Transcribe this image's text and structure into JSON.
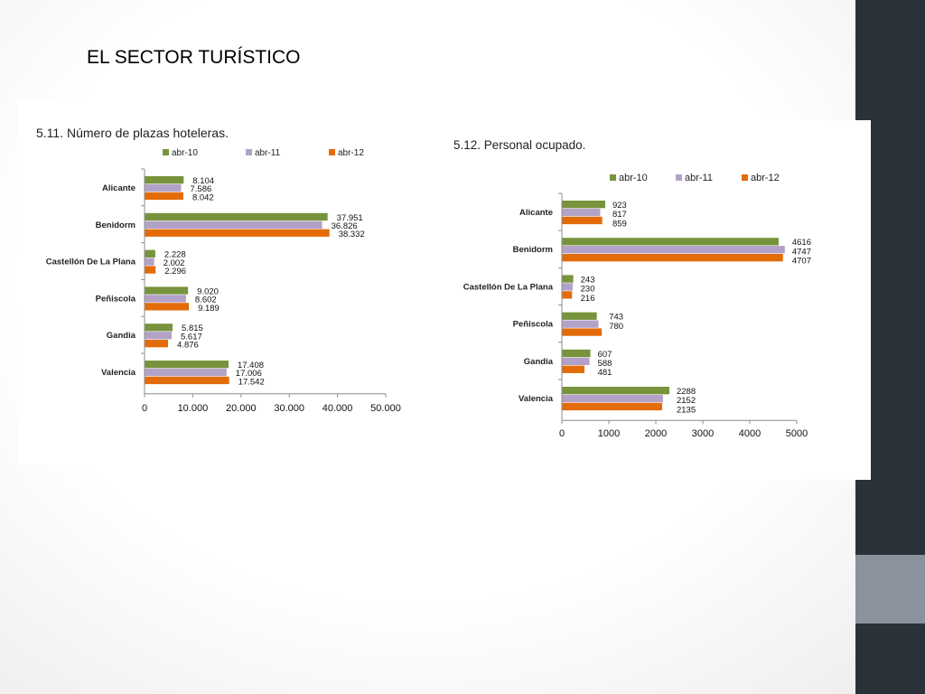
{
  "slide": {
    "title": "EL SECTOR TURÍSTICO"
  },
  "colors": {
    "abr-10": "#77933c",
    "abr-11": "#b3a2c7",
    "abr-12": "#e36c09",
    "sidebar": "#2b3138",
    "sidebar_accent": "#8a929d"
  },
  "chart_data": [
    {
      "type": "bar",
      "orientation": "horizontal",
      "title": "5.11. Número de plazas hoteleras.",
      "categories": [
        "Alicante",
        "Benidorm",
        "Castellón De La Plana",
        "Peñiscola",
        "Gandia",
        "Valencia"
      ],
      "series": [
        {
          "name": "abr-10",
          "color": "#77933c",
          "values": [
            8104,
            37951,
            2228,
            9020,
            5815,
            17408
          ],
          "labels": [
            "8.104",
            "37.951",
            "2.228",
            "9.020",
            "5.815",
            "17.408"
          ]
        },
        {
          "name": "abr-11",
          "color": "#b3a2c7",
          "values": [
            7586,
            36826,
            2002,
            8602,
            5617,
            17006
          ],
          "labels": [
            "7.586",
            "36.826",
            "2.002",
            "8.602",
            "5.617",
            "17.006"
          ]
        },
        {
          "name": "abr-12",
          "color": "#e36c09",
          "values": [
            8042,
            38332,
            2296,
            9189,
            4876,
            17542
          ],
          "labels": [
            "8.042",
            "38.332",
            "2.296",
            "9.189",
            "4.876",
            "17.542"
          ]
        }
      ],
      "xlim": [
        0,
        50000
      ],
      "xticks": [
        0,
        10000,
        20000,
        30000,
        40000,
        50000
      ],
      "xtick_labels": [
        "0",
        "10.000",
        "20.000",
        "30.000",
        "40.000",
        "50.000"
      ],
      "legend": "top"
    },
    {
      "type": "bar",
      "orientation": "horizontal",
      "title": "5.12. Personal ocupado.",
      "categories": [
        "Alicante",
        "Benidorm",
        "Castellón De La Plana",
        "Peñiscola",
        "Gandia",
        "Valencia"
      ],
      "series": [
        {
          "name": "abr-10",
          "color": "#77933c",
          "values": [
            923,
            4616,
            243,
            743,
            607,
            2288
          ],
          "labels": [
            "923",
            "4616",
            "243",
            "743",
            "607",
            "2288"
          ]
        },
        {
          "name": "abr-11",
          "color": "#b3a2c7",
          "values": [
            817,
            4747,
            230,
            780,
            588,
            2152
          ],
          "labels": [
            "817",
            "4747",
            "230",
            "780",
            "588",
            "2152"
          ]
        },
        {
          "name": "abr-12",
          "color": "#e36c09",
          "values": [
            859,
            4707,
            216,
            850,
            481,
            2135
          ],
          "labels": [
            "859",
            "4707",
            "216",
            "",
            "481",
            "2135"
          ]
        }
      ],
      "xlim": [
        0,
        5000
      ],
      "xticks": [
        0,
        1000,
        2000,
        3000,
        4000,
        5000
      ],
      "xtick_labels": [
        "0",
        "1000",
        "2000",
        "3000",
        "4000",
        "5000"
      ],
      "legend": "top"
    }
  ]
}
